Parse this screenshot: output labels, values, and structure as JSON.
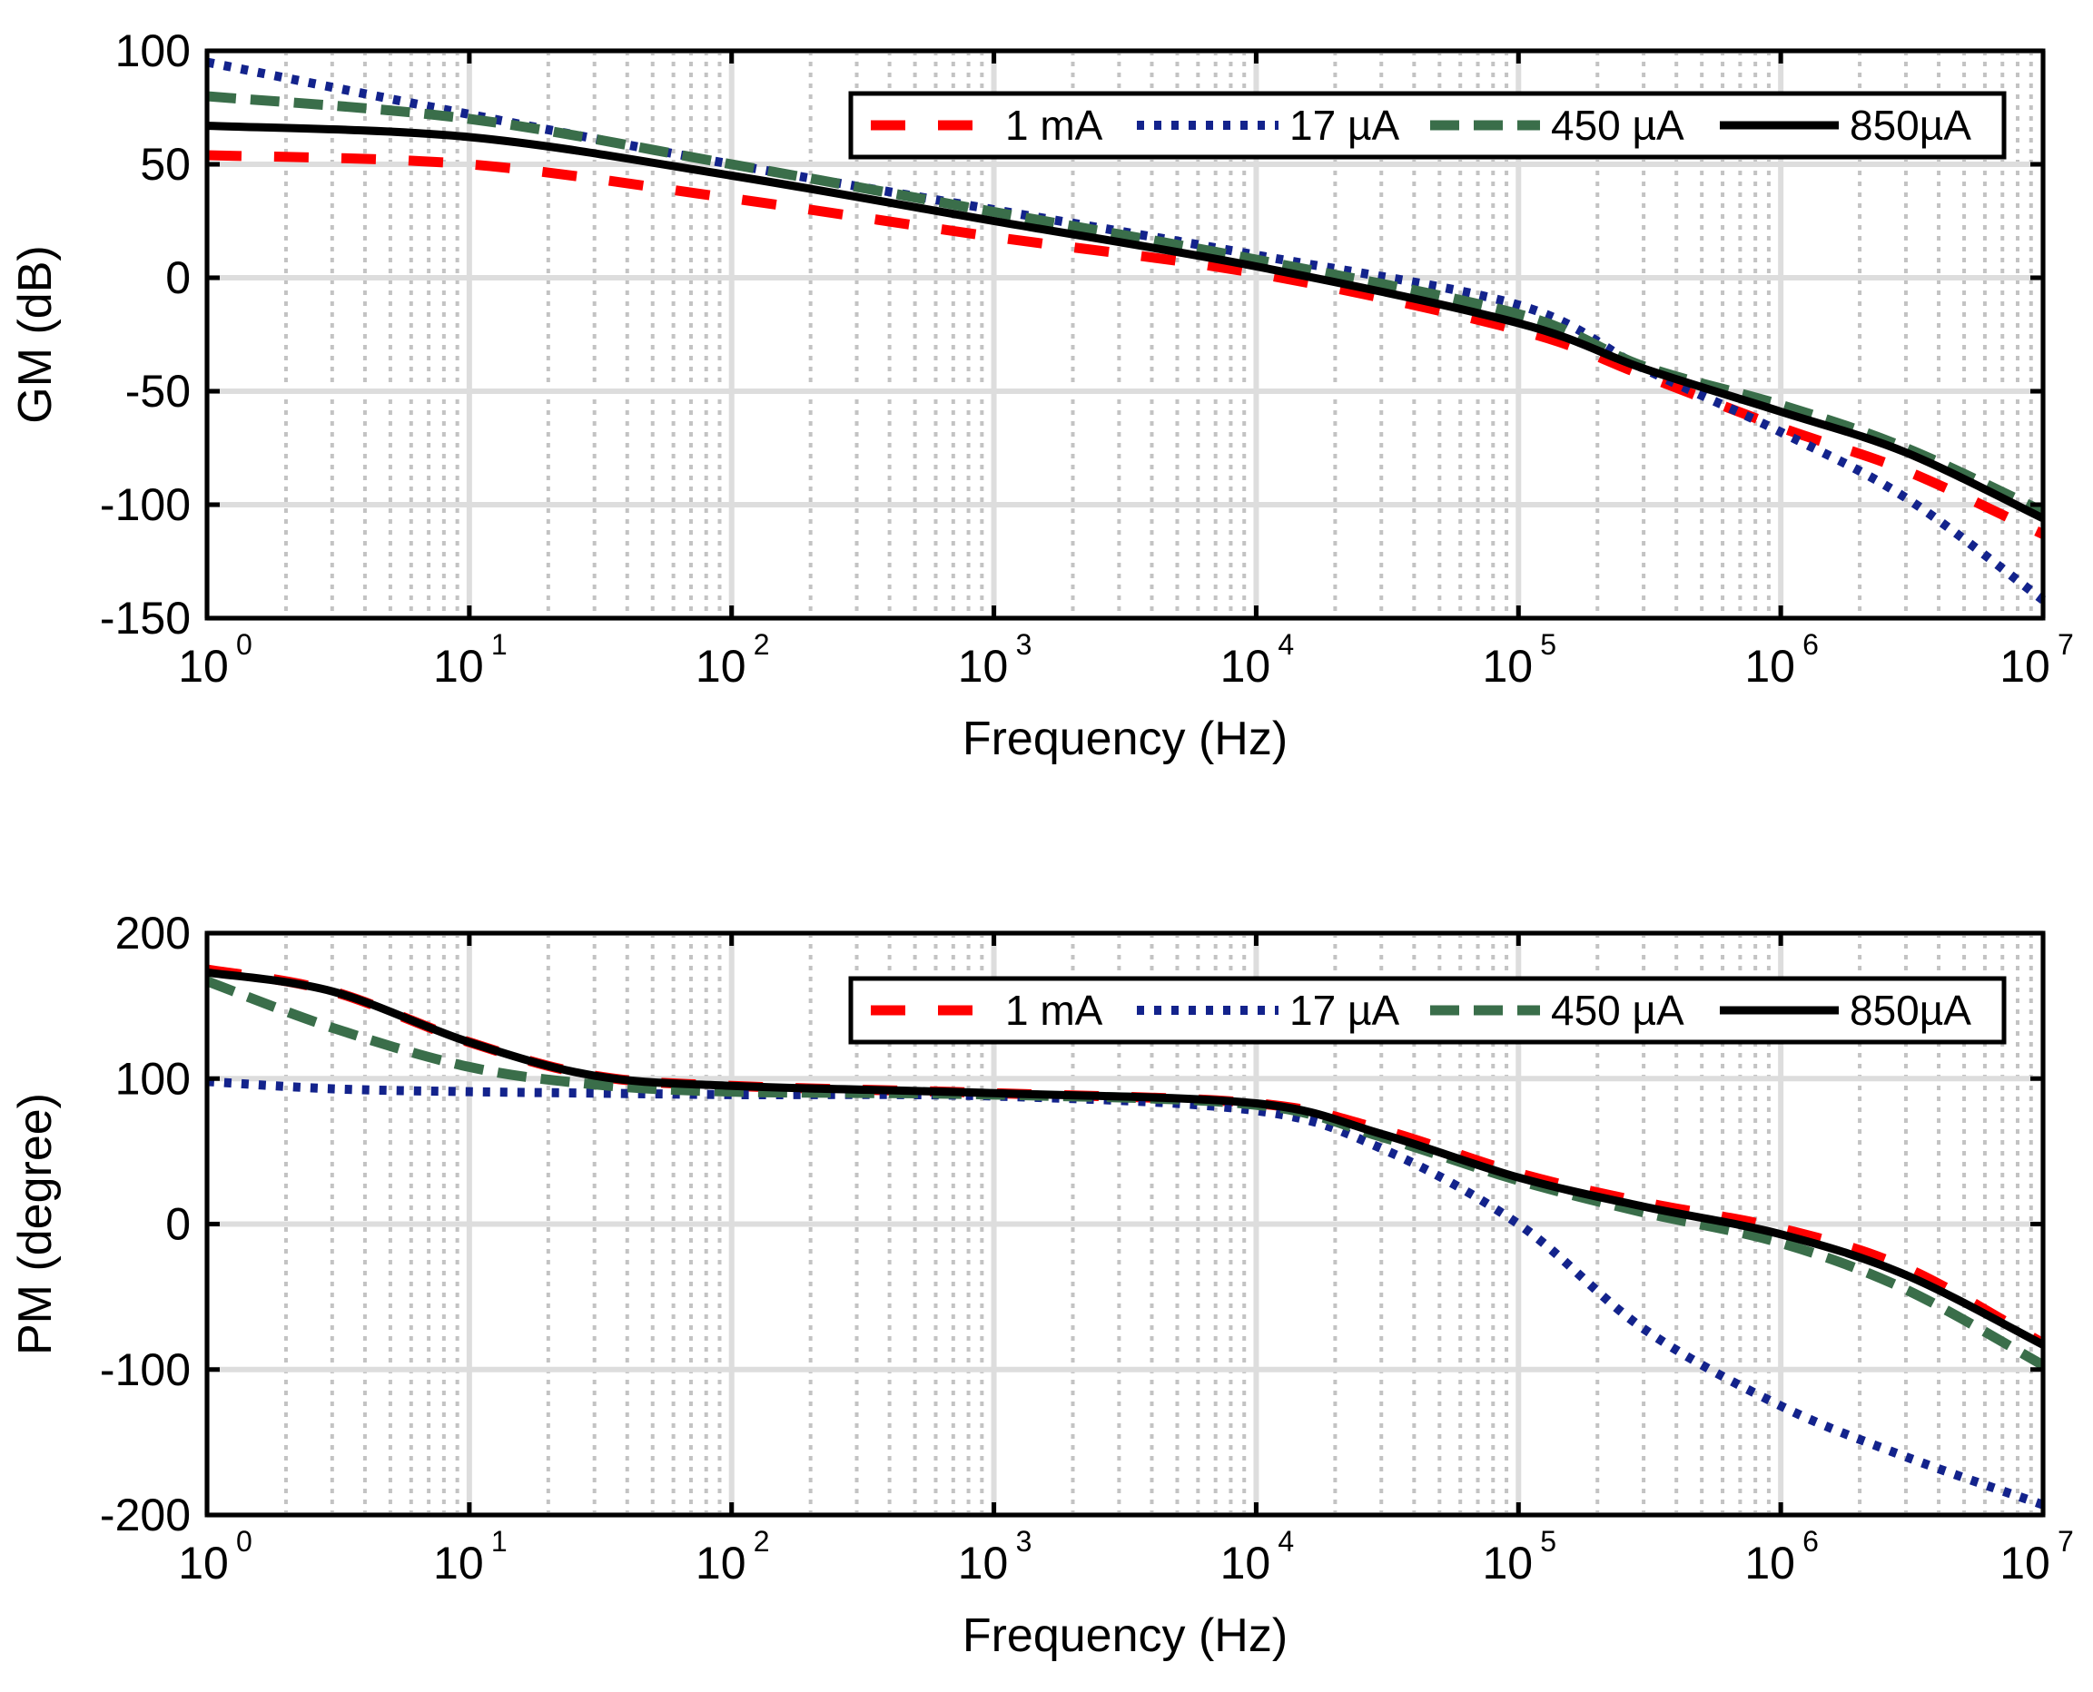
{
  "series_styles": [
    {
      "name": "1 mA",
      "color": "#ff0000",
      "dash": "38 36",
      "width": 11
    },
    {
      "name": "17 µA",
      "color": "#13238c",
      "dash": "8 11",
      "width": 10
    },
    {
      "name": "450 µA",
      "color": "#3a6e4a",
      "dash": "32 16",
      "width": 11
    },
    {
      "name": "850µA",
      "color": "#000000",
      "dash": "",
      "width": 9
    }
  ],
  "chart_data": [
    {
      "type": "line",
      "title": "",
      "xlabel": "Frequency (Hz)",
      "ylabel": "GM (dB)",
      "xscale": "log",
      "xlim": [
        1,
        10000000
      ],
      "ylim": [
        -150,
        100
      ],
      "yticks": [
        "100",
        "50",
        "0",
        "-50",
        "-100",
        "-150"
      ],
      "xtick_base": "10",
      "xtick_exponents": [
        "0",
        "1",
        "2",
        "3",
        "4",
        "5",
        "6",
        "7"
      ],
      "grid": true,
      "legend": {
        "position": "top-right",
        "entries": [
          "1 mA",
          "17 µA",
          "450 µA",
          "850µA"
        ]
      },
      "x": [
        1,
        10,
        100,
        1000,
        10000,
        100000,
        300000,
        1000000,
        3000000,
        10000000
      ],
      "series": [
        {
          "name": "1 mA",
          "values": [
            54,
            50,
            35,
            18,
            2,
            -23,
            -43,
            -66,
            -85,
            -113
          ]
        },
        {
          "name": "17 µA",
          "values": [
            95,
            72,
            50,
            30,
            10,
            -12,
            -40,
            -68,
            -97,
            -142
          ]
        },
        {
          "name": "450 µA",
          "values": [
            80,
            70,
            50,
            29,
            8,
            -16,
            -39,
            -56,
            -75,
            -103
          ]
        },
        {
          "name": "850µA",
          "values": [
            67,
            62,
            45,
            25,
            5,
            -20,
            -40,
            -59,
            -77,
            -106
          ]
        }
      ]
    },
    {
      "type": "line",
      "title": "",
      "xlabel": "Frequency (Hz)",
      "ylabel": "PM (degree)",
      "xscale": "log",
      "xlim": [
        1,
        10000000
      ],
      "ylim": [
        -200,
        200
      ],
      "yticks": [
        "200",
        "100",
        "0",
        "-100",
        "-200"
      ],
      "xtick_base": "10",
      "xtick_exponents": [
        "0",
        "1",
        "2",
        "3",
        "4",
        "5",
        "6",
        "7"
      ],
      "grid": true,
      "legend": {
        "position": "top-right",
        "entries": [
          "1 mA",
          "17 µA",
          "450 µA",
          "850µA"
        ]
      },
      "x": [
        1,
        3,
        10,
        30,
        100,
        1000,
        10000,
        30000,
        100000,
        300000,
        1000000,
        3000000,
        10000000
      ],
      "series": [
        {
          "name": "1 mA",
          "values": [
            175,
            160,
            125,
            102,
            95,
            90,
            83,
            65,
            35,
            15,
            -3,
            -30,
            -82
          ]
        },
        {
          "name": "17 µA",
          "values": [
            98,
            93,
            91,
            90,
            89,
            88,
            78,
            52,
            0,
            -72,
            -125,
            -160,
            -193
          ]
        },
        {
          "name": "450 µA",
          "values": [
            167,
            135,
            108,
            96,
            91,
            89,
            82,
            60,
            30,
            8,
            -13,
            -45,
            -97
          ]
        },
        {
          "name": "850µA",
          "values": [
            173,
            160,
            125,
            102,
            95,
            90,
            83,
            62,
            32,
            12,
            -7,
            -35,
            -83
          ]
        }
      ]
    }
  ]
}
